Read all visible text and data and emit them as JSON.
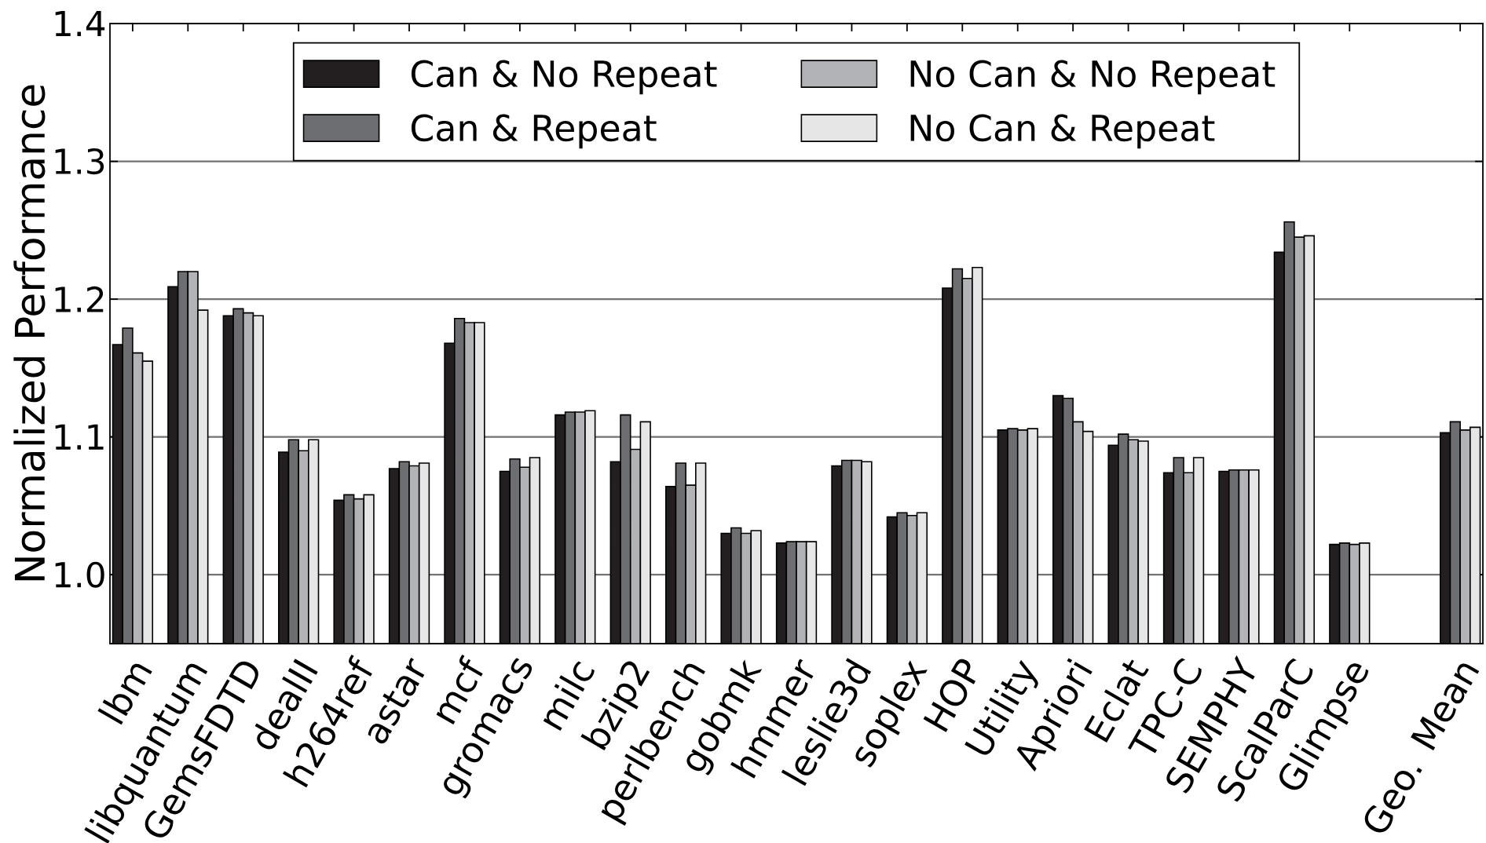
{
  "chart_data": {
    "type": "bar",
    "ylabel": "Normalized Performance",
    "categories": [
      "lbm",
      "libquantum",
      "GemsFDTD",
      "dealII",
      "h264ref",
      "astar",
      "mcf",
      "gromacs",
      "milc",
      "bzip2",
      "perlbench",
      "gobmk",
      "hmmer",
      "leslie3d",
      "soplex",
      "HOP",
      "Utility",
      "Apriori",
      "Eclat",
      "TPC-C",
      "SEMPHY",
      "ScalParC",
      "Glimpse",
      null,
      "Geo. Mean"
    ],
    "series": [
      {
        "name": "Can & No Repeat",
        "color": "#231f20",
        "values": [
          1.167,
          1.209,
          1.188,
          1.089,
          1.054,
          1.077,
          1.168,
          1.075,
          1.116,
          1.082,
          1.064,
          1.03,
          1.023,
          1.079,
          1.042,
          1.208,
          1.105,
          1.13,
          1.094,
          1.074,
          1.075,
          1.234,
          1.022,
          null,
          1.103
        ]
      },
      {
        "name": "Can & Repeat",
        "color": "#6d6e71",
        "values": [
          1.179,
          1.22,
          1.193,
          1.098,
          1.058,
          1.082,
          1.186,
          1.084,
          1.118,
          1.116,
          1.081,
          1.034,
          1.024,
          1.083,
          1.045,
          1.222,
          1.106,
          1.128,
          1.102,
          1.085,
          1.076,
          1.256,
          1.023,
          null,
          1.111
        ]
      },
      {
        "name": "No Can & No Repeat",
        "color": "#b1b3b6",
        "values": [
          1.161,
          1.22,
          1.19,
          1.09,
          1.055,
          1.079,
          1.183,
          1.078,
          1.118,
          1.091,
          1.065,
          1.03,
          1.024,
          1.083,
          1.043,
          1.215,
          1.105,
          1.111,
          1.098,
          1.074,
          1.076,
          1.245,
          1.022,
          null,
          1.105
        ]
      },
      {
        "name": "No Can & Repeat",
        "color": "#e6e6e6",
        "values": [
          1.155,
          1.192,
          1.188,
          1.098,
          1.058,
          1.081,
          1.183,
          1.085,
          1.119,
          1.111,
          1.081,
          1.032,
          1.024,
          1.082,
          1.045,
          1.223,
          1.106,
          1.104,
          1.097,
          1.085,
          1.076,
          1.246,
          1.023,
          null,
          1.107
        ]
      }
    ],
    "ylim": [
      0.95,
      1.4
    ],
    "yticks": [
      {
        "value": 1.0,
        "label": "1.0"
      },
      {
        "value": 1.1,
        "label": "1.1"
      },
      {
        "value": 1.2,
        "label": "1.2"
      },
      {
        "value": 1.3,
        "label": "1.3"
      },
      {
        "value": 1.4,
        "label": "1.4"
      }
    ],
    "grid": "y",
    "legend": "top"
  }
}
